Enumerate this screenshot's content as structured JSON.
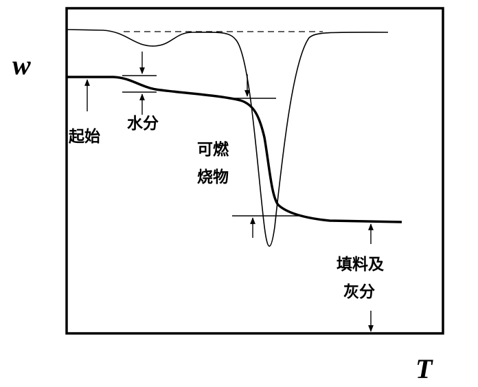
{
  "axes": {
    "y_label": "w",
    "x_label": "T"
  },
  "annotations": {
    "start": "起始",
    "moisture": "水分",
    "combustibles": [
      "可燃",
      "烧物"
    ],
    "filler_ash": [
      "填料及",
      "灰分"
    ]
  }
}
